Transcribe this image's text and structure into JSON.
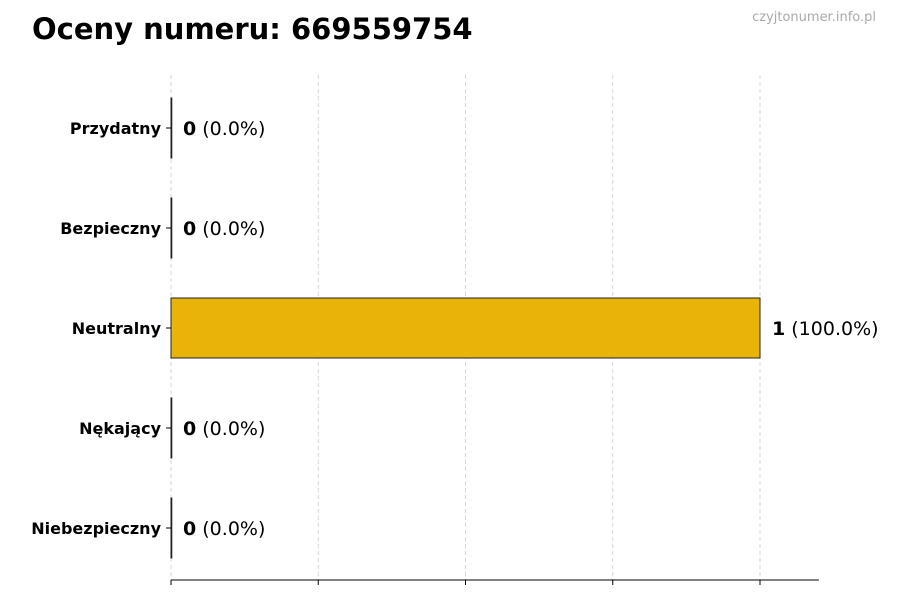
{
  "chart_data": {
    "type": "bar",
    "orientation": "horizontal",
    "title": "Oceny numeru: 669559754",
    "watermark": "czyjtonumer.info.pl",
    "categories": [
      "Przydatny",
      "Bezpieczny",
      "Neutralny",
      "Nękający",
      "Niebezpieczny"
    ],
    "values": [
      0,
      0,
      1,
      0,
      0
    ],
    "percent_labels": [
      "(0.0%)",
      "(0.0%)",
      "(100.0%)",
      "(0.0%)",
      "(0.0%)"
    ],
    "xlim": [
      0,
      1.1
    ],
    "xticks": [
      0,
      0.25,
      0.5,
      0.75,
      1.0
    ],
    "grid": "vertical dashed",
    "colors": {
      "bar": "#e8b40a",
      "edge": "#222222",
      "grid": "#cccccc"
    }
  }
}
